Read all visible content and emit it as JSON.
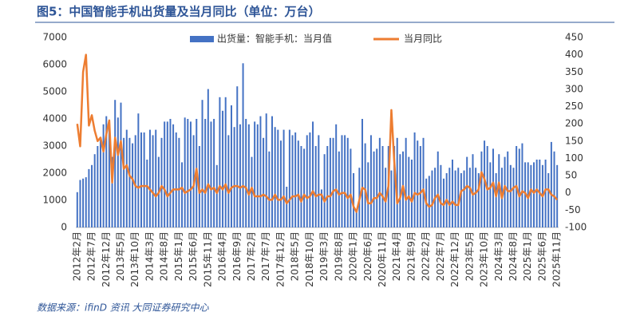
{
  "chart_data": {
    "type": "bar",
    "title": "图5：中国智能手机出货量及当月同比（单位：万台）",
    "source": "数据来源：ifinD 资讯 大同证券研究中心",
    "categories": [
      "2012年2月",
      null,
      null,
      null,
      null,
      "2012年7月",
      null,
      null,
      null,
      null,
      "2012年12月",
      null,
      null,
      null,
      null,
      "2013年5月",
      null,
      null,
      null,
      null,
      "2013年10月",
      null,
      null,
      null,
      null,
      "2014年3月",
      null,
      null,
      null,
      null,
      "2014年8月",
      null,
      null,
      null,
      null,
      "2015年1月",
      null,
      null,
      null,
      null,
      "2015年6月",
      null,
      null,
      null,
      null,
      "2015年11月",
      null,
      null,
      null,
      null,
      "2016年4月",
      null,
      null,
      null,
      null,
      "2016年9月",
      null,
      null,
      null,
      null,
      "2017年2月",
      null,
      null,
      null,
      null,
      "2017年7月",
      null,
      null,
      null,
      null,
      "2017年12月",
      null,
      null,
      null,
      null,
      "2018年5月",
      null,
      null,
      null,
      null,
      "2018年10月",
      null,
      null,
      null,
      null,
      "2019年3月",
      null,
      null,
      null,
      null,
      "2019年8月",
      null,
      null,
      null,
      null,
      "2020年1月",
      null,
      null,
      null,
      null,
      "2020年6月",
      null,
      null,
      null,
      null,
      "2020年11月",
      null,
      null,
      null,
      null,
      "2021年4月",
      null,
      null,
      null,
      null,
      "2021年9月",
      null,
      null,
      null,
      null,
      "2022年2月",
      null,
      null,
      null,
      null,
      "2022年7月",
      null,
      null,
      null,
      null,
      "2022年12月",
      null,
      null,
      null,
      null,
      "2023年5月",
      null,
      null,
      null,
      null,
      "2023年10月",
      null,
      null,
      null,
      null,
      "2024年3月",
      null,
      null,
      null,
      null,
      "2024年8月",
      null,
      null,
      null,
      null,
      "2025年1月",
      null,
      null,
      null,
      null,
      "2025年6月",
      null,
      null,
      null,
      null,
      "2025年11月"
    ],
    "series": [
      {
        "name": "出货量：智能手机：当月值",
        "type": "bar",
        "color": "#4472c4",
        "values": [
          1300,
          1750,
          1800,
          1850,
          2150,
          2300,
          2700,
          3000,
          3300,
          3800,
          4100,
          3900,
          2600,
          4700,
          4050,
          4600,
          3300,
          3600,
          3300,
          3100,
          3400,
          4200,
          3500,
          3500,
          2500,
          3600,
          3400,
          3600,
          2600,
          3300,
          3900,
          3900,
          4000,
          3800,
          3500,
          3300,
          2400,
          4050,
          4000,
          3900,
          3400,
          4000,
          3000,
          4700,
          4000,
          5100,
          3900,
          4000,
          2300,
          4800,
          4300,
          4800,
          3400,
          4500,
          3700,
          5200,
          3800,
          6050,
          4000,
          3800,
          2600,
          3900,
          3800,
          4100,
          3300,
          4200,
          2800,
          4100,
          3700,
          3600,
          3200,
          3600,
          1500,
          3600,
          3400,
          3500,
          3200,
          3000,
          2900,
          3400,
          3500,
          3900,
          3000,
          3400,
          1400,
          2700,
          3000,
          3300,
          3300,
          3800,
          2800,
          3400,
          3400,
          3300,
          2900,
          2000,
          600,
          2200,
          4000,
          3100,
          2400,
          3400,
          2800,
          2900,
          3300,
          3000,
          2200,
          3000,
          2100,
          3000,
          3300,
          2700,
          2800,
          3300,
          2600,
          2500,
          3500,
          3200,
          3000,
          3300,
          1800,
          1900,
          2100,
          2200,
          2800,
          2300,
          1800,
          2000,
          2200,
          2500,
          2100,
          2200,
          2000,
          2100,
          2600,
          2200,
          2700,
          2200,
          2000,
          2800,
          3200,
          3000,
          2400,
          2900,
          2000,
          2700,
          2200,
          2600,
          2800,
          2300,
          2200,
          3000,
          2900,
          3100,
          2400,
          2400,
          2300,
          2400,
          2500,
          2500,
          2300,
          2500,
          2000,
          3150,
          2800,
          2300
        ]
      },
      {
        "name": "当月同比",
        "type": "line",
        "axis": "y2",
        "color": "#ed7d31",
        "values": [
          200,
          135,
          350,
          400,
          195,
          225,
          180,
          150,
          160,
          120,
          170,
          210,
          30,
          160,
          110,
          150,
          70,
          80,
          50,
          40,
          20,
          15,
          20,
          20,
          20,
          10,
          0,
          -10,
          0,
          20,
          10,
          -10,
          0,
          10,
          10,
          10,
          15,
          0,
          5,
          10,
          20,
          70,
          0,
          10,
          0,
          25,
          10,
          15,
          0,
          20,
          10,
          25,
          0,
          15,
          20,
          20,
          15,
          20,
          15,
          -5,
          15,
          -10,
          -10,
          -10,
          -5,
          -10,
          -20,
          -20,
          -5,
          -20,
          -20,
          -10,
          -30,
          -20,
          -10,
          -10,
          -5,
          -25,
          -5,
          -15,
          -10,
          5,
          -10,
          -5,
          -5,
          -25,
          -10,
          -10,
          5,
          10,
          -5,
          0,
          0,
          -15,
          -5,
          -40,
          -55,
          -20,
          15,
          10,
          -30,
          -30,
          -15,
          -15,
          0,
          -10,
          -25,
          20,
          240,
          90,
          -30,
          -15,
          20,
          -20,
          -10,
          -25,
          0,
          -5,
          0,
          10,
          -30,
          -40,
          -35,
          -15,
          -5,
          -30,
          -35,
          -20,
          -35,
          -25,
          -35,
          -35,
          5,
          10,
          20,
          15,
          -5,
          0,
          10,
          60,
          40,
          10,
          15,
          30,
          -10,
          30,
          -15,
          20,
          5,
          5,
          15,
          20,
          -10,
          5,
          0,
          -15,
          10,
          0,
          10,
          0,
          -10,
          10,
          10,
          -5,
          -10,
          -20
        ]
      }
    ],
    "ylim": [
      0,
      7000
    ],
    "yticks": [
      0,
      1000,
      2000,
      3000,
      4000,
      5000,
      6000,
      7000
    ],
    "y2lim": [
      -100,
      450
    ],
    "y2ticks": [
      -100,
      -50,
      0,
      50,
      100,
      150,
      200,
      250,
      300,
      350,
      400,
      450
    ],
    "legend": "top",
    "grid": false
  }
}
